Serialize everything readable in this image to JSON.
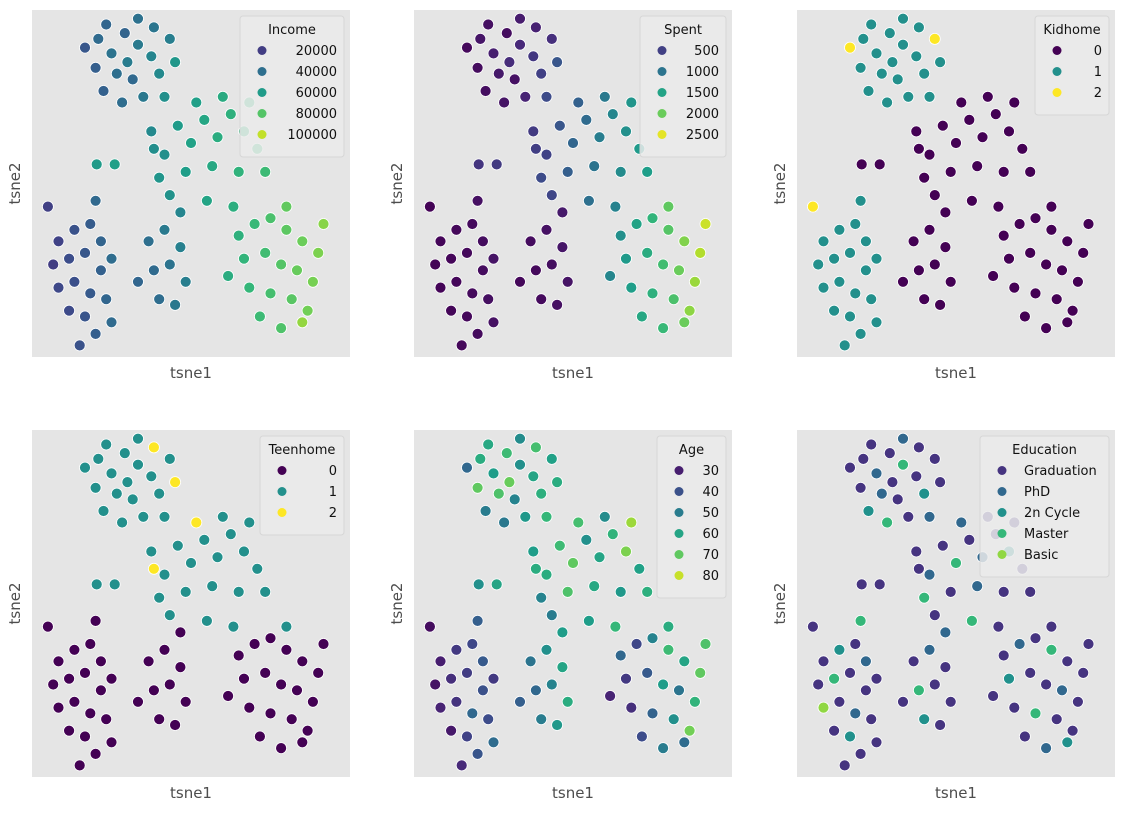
{
  "chart_data": {
    "type": "scatter",
    "grid": false,
    "point_fields": [
      "tsne1",
      "tsne2",
      "Income",
      "Spent",
      "Kidhome",
      "Teenhome",
      "Age",
      "Education"
    ],
    "education_categories": [
      "Graduation",
      "PhD",
      "2n Cycle",
      "Master",
      "Basic"
    ],
    "xlim": [
      -60,
      60
    ],
    "ylim": [
      -60,
      60
    ],
    "points": [
      [
        -35,
        50,
        38000,
        150,
        1,
        1,
        62,
        0
      ],
      [
        -30,
        45,
        42000,
        220,
        1,
        1,
        58,
        1
      ],
      [
        -25,
        52,
        35000,
        90,
        1,
        1,
        66,
        0
      ],
      [
        -20,
        48,
        45000,
        300,
        1,
        1,
        55,
        3
      ],
      [
        -15,
        44,
        50000,
        420,
        1,
        1,
        60,
        0
      ],
      [
        -28,
        38,
        40000,
        180,
        1,
        1,
        68,
        1
      ],
      [
        -22,
        36,
        37000,
        120,
        1,
        1,
        52,
        0
      ],
      [
        -12,
        38,
        52000,
        500,
        1,
        1,
        63,
        2
      ],
      [
        -36,
        40,
        33000,
        80,
        1,
        1,
        70,
        0
      ],
      [
        -18,
        30,
        44000,
        260,
        1,
        1,
        57,
        0
      ],
      [
        -26,
        28,
        39000,
        140,
        1,
        1,
        49,
        3
      ],
      [
        -10,
        30,
        55000,
        600,
        1,
        1,
        65,
        1
      ],
      [
        -32,
        55,
        36000,
        110,
        1,
        1,
        61,
        0
      ],
      [
        -40,
        47,
        30000,
        60,
        2,
        1,
        45,
        0
      ],
      [
        -8,
        50,
        47000,
        350,
        2,
        1,
        59,
        0
      ],
      [
        -6,
        42,
        58000,
        700,
        1,
        2,
        62,
        0
      ],
      [
        -20,
        57,
        41000,
        200,
        1,
        1,
        54,
        1
      ],
      [
        -14,
        54,
        43000,
        240,
        1,
        2,
        67,
        0
      ],
      [
        -33,
        32,
        34000,
        95,
        1,
        1,
        50,
        2
      ],
      [
        -24,
        42,
        46000,
        330,
        1,
        1,
        71,
        0
      ],
      [
        -15,
        18,
        52000,
        450,
        0,
        1,
        58,
        0
      ],
      [
        -10,
        10,
        55000,
        520,
        0,
        1,
        62,
        1
      ],
      [
        -5,
        20,
        60000,
        700,
        0,
        1,
        66,
        0
      ],
      [
        0,
        14,
        63000,
        850,
        0,
        1,
        70,
        3
      ],
      [
        5,
        22,
        65000,
        900,
        0,
        1,
        55,
        0
      ],
      [
        10,
        16,
        68000,
        1100,
        0,
        1,
        60,
        1
      ],
      [
        15,
        24,
        70000,
        1200,
        0,
        1,
        64,
        0
      ],
      [
        20,
        18,
        72000,
        1300,
        0,
        1,
        73,
        2
      ],
      [
        25,
        12,
        74000,
        1400,
        0,
        1,
        59,
        0
      ],
      [
        -12,
        2,
        57000,
        600,
        0,
        1,
        52,
        3
      ],
      [
        -2,
        4,
        61000,
        780,
        0,
        1,
        68,
        0
      ],
      [
        8,
        6,
        66000,
        1000,
        0,
        1,
        61,
        1
      ],
      [
        18,
        4,
        71000,
        1250,
        0,
        1,
        57,
        0
      ],
      [
        28,
        4,
        75000,
        1450,
        0,
        1,
        63,
        0
      ],
      [
        2,
        28,
        62000,
        800,
        0,
        2,
        67,
        1
      ],
      [
        12,
        30,
        67000,
        1050,
        0,
        1,
        54,
        0
      ],
      [
        22,
        28,
        73000,
        1350,
        0,
        1,
        76,
        0
      ],
      [
        -8,
        -4,
        56000,
        550,
        0,
        1,
        50,
        0
      ],
      [
        6,
        -6,
        64000,
        950,
        0,
        1,
        58,
        3
      ],
      [
        16,
        -8,
        69000,
        1150,
        0,
        1,
        65,
        0
      ],
      [
        -14,
        12,
        54000,
        480,
        0,
        2,
        62,
        0
      ],
      [
        18,
        -18,
        70000,
        1300,
        0,
        0,
        45,
        0
      ],
      [
        24,
        -14,
        74000,
        1500,
        0,
        0,
        38,
        1
      ],
      [
        30,
        -12,
        78000,
        1700,
        0,
        0,
        52,
        0
      ],
      [
        36,
        -16,
        82000,
        1900,
        0,
        0,
        66,
        3
      ],
      [
        42,
        -20,
        85000,
        2100,
        0,
        0,
        60,
        0
      ],
      [
        48,
        -24,
        88000,
        2300,
        0,
        0,
        70,
        0
      ],
      [
        20,
        -26,
        72000,
        1400,
        0,
        0,
        35,
        2
      ],
      [
        28,
        -24,
        76000,
        1600,
        0,
        0,
        42,
        0
      ],
      [
        34,
        -28,
        80000,
        1800,
        0,
        0,
        58,
        0
      ],
      [
        40,
        -30,
        84000,
        2000,
        0,
        0,
        48,
        1
      ],
      [
        46,
        -34,
        87000,
        2200,
        0,
        0,
        64,
        0
      ],
      [
        22,
        -36,
        73000,
        1450,
        0,
        0,
        33,
        0
      ],
      [
        30,
        -38,
        77000,
        1650,
        0,
        0,
        44,
        3
      ],
      [
        38,
        -40,
        81000,
        1850,
        0,
        0,
        55,
        0
      ],
      [
        44,
        -44,
        86000,
        2150,
        0,
        0,
        72,
        0
      ],
      [
        26,
        -46,
        75000,
        1550,
        0,
        0,
        39,
        0
      ],
      [
        34,
        -50,
        79000,
        1750,
        0,
        0,
        50,
        1
      ],
      [
        50,
        -14,
        90000,
        2400,
        0,
        0,
        68,
        0
      ],
      [
        14,
        -32,
        68000,
        1200,
        0,
        0,
        31,
        0
      ],
      [
        36,
        -8,
        83000,
        1950,
        0,
        1,
        62,
        0
      ],
      [
        42,
        -48,
        92000,
        2000,
        0,
        0,
        46,
        2
      ],
      [
        -50,
        -20,
        22000,
        30,
        1,
        0,
        30,
        0
      ],
      [
        -44,
        -16,
        28000,
        50,
        1,
        0,
        35,
        2
      ],
      [
        -38,
        -14,
        32000,
        70,
        1,
        0,
        38,
        0
      ],
      [
        -34,
        -20,
        35000,
        90,
        1,
        0,
        42,
        1
      ],
      [
        -52,
        -28,
        20000,
        20,
        1,
        0,
        28,
        0
      ],
      [
        -46,
        -26,
        26000,
        40,
        1,
        0,
        33,
        3
      ],
      [
        -40,
        -24,
        30000,
        60,
        1,
        0,
        36,
        0
      ],
      [
        -34,
        -30,
        34000,
        80,
        1,
        0,
        40,
        0
      ],
      [
        -50,
        -36,
        24000,
        25,
        1,
        0,
        31,
        4
      ],
      [
        -44,
        -34,
        27000,
        45,
        1,
        0,
        34,
        0
      ],
      [
        -38,
        -38,
        31000,
        65,
        1,
        0,
        45,
        1
      ],
      [
        -32,
        -40,
        36000,
        100,
        1,
        0,
        39,
        0
      ],
      [
        -46,
        -44,
        25000,
        35,
        1,
        0,
        29,
        0
      ],
      [
        -40,
        -46,
        29000,
        55,
        1,
        0,
        37,
        2
      ],
      [
        -36,
        -52,
        33000,
        75,
        1,
        0,
        41,
        0
      ],
      [
        -30,
        -48,
        38000,
        120,
        1,
        0,
        46,
        0
      ],
      [
        -42,
        -56,
        28000,
        50,
        1,
        0,
        32,
        0
      ],
      [
        -54,
        -8,
        21000,
        15,
        2,
        0,
        27,
        0
      ],
      [
        -36,
        -6,
        37000,
        110,
        1,
        0,
        43,
        3
      ],
      [
        -30,
        -26,
        39000,
        140,
        1,
        0,
        35,
        0
      ],
      [
        -16,
        -20,
        40000,
        80,
        0,
        0,
        48,
        0
      ],
      [
        -10,
        -16,
        45000,
        120,
        0,
        0,
        55,
        1
      ],
      [
        -4,
        -22,
        48000,
        150,
        0,
        0,
        60,
        0
      ],
      [
        -14,
        -30,
        38000,
        60,
        0,
        0,
        45,
        3
      ],
      [
        -8,
        -28,
        42000,
        100,
        0,
        0,
        52,
        0
      ],
      [
        -2,
        -34,
        47000,
        140,
        0,
        0,
        62,
        0
      ],
      [
        -12,
        -40,
        39000,
        70,
        0,
        0,
        50,
        2
      ],
      [
        -6,
        -42,
        44000,
        110,
        0,
        0,
        57,
        0
      ],
      [
        -20,
        -34,
        36000,
        50,
        0,
        0,
        43,
        0
      ],
      [
        -4,
        -10,
        50000,
        180,
        0,
        0,
        58,
        1
      ],
      [
        -35.6,
        6.6,
        60000,
        400,
        0,
        1,
        55,
        0
      ],
      [
        -28.8,
        6.6,
        62000,
        450,
        0,
        1,
        60,
        0
      ]
    ],
    "panels": [
      {
        "hue": "Income",
        "field": 2,
        "xlabel": "tsne1",
        "ylabel": "tsne2",
        "legend_title": "Income",
        "legend_placement": "top-right",
        "hue_range": [
          0,
          110000
        ],
        "legend": [
          {
            "label": "20000",
            "value": 20000
          },
          {
            "label": "40000",
            "value": 40000
          },
          {
            "label": "60000",
            "value": 60000
          },
          {
            "label": "80000",
            "value": 80000
          },
          {
            "label": "100000",
            "value": 100000
          }
        ]
      },
      {
        "hue": "Spent",
        "field": 3,
        "xlabel": "tsne1",
        "ylabel": "tsne2",
        "legend_title": "Spent",
        "legend_placement": "top-right",
        "hue_range": [
          0,
          2600
        ],
        "legend": [
          {
            "label": "500",
            "value": 500
          },
          {
            "label": "1000",
            "value": 1000
          },
          {
            "label": "1500",
            "value": 1500
          },
          {
            "label": "2000",
            "value": 2000
          },
          {
            "label": "2500",
            "value": 2500
          }
        ]
      },
      {
        "hue": "Kidhome",
        "field": 4,
        "xlabel": "tsne1",
        "ylabel": "tsne2",
        "legend_title": "Kidhome",
        "legend_placement": "top-right",
        "hue_range": [
          0,
          2
        ],
        "legend": [
          {
            "label": "0",
            "value": 0
          },
          {
            "label": "1",
            "value": 1
          },
          {
            "label": "2",
            "value": 2
          }
        ]
      },
      {
        "hue": "Teenhome",
        "field": 5,
        "xlabel": "tsne1",
        "ylabel": "tsne2",
        "legend_title": "Teenhome",
        "legend_placement": "top-right",
        "hue_range": [
          0,
          2
        ],
        "legend": [
          {
            "label": "0",
            "value": 0
          },
          {
            "label": "1",
            "value": 1
          },
          {
            "label": "2",
            "value": 2
          }
        ]
      },
      {
        "hue": "Age",
        "field": 6,
        "xlabel": "tsne1",
        "ylabel": "tsne2",
        "legend_title": "Age",
        "legend_placement": "top-right",
        "hue_range": [
          25,
          85
        ],
        "legend": [
          {
            "label": "30",
            "value": 30
          },
          {
            "label": "40",
            "value": 40
          },
          {
            "label": "50",
            "value": 50
          },
          {
            "label": "60",
            "value": 60
          },
          {
            "label": "70",
            "value": 70
          },
          {
            "label": "80",
            "value": 80
          }
        ]
      },
      {
        "hue": "Education",
        "field": 7,
        "xlabel": "tsne1",
        "ylabel": "tsne2",
        "legend_title": "Education",
        "legend_placement": "top-right",
        "categorical": true,
        "colors": [
          "#463480",
          "#31688e",
          "#21918c",
          "#35b779",
          "#90d743"
        ],
        "legend": [
          {
            "label": "Graduation",
            "value": 0
          },
          {
            "label": "PhD",
            "value": 1
          },
          {
            "label": "2n Cycle",
            "value": 2
          },
          {
            "label": "Master",
            "value": 3
          },
          {
            "label": "Basic",
            "value": 4
          }
        ]
      }
    ],
    "axes_background": "#e5e5e5",
    "colormap": "viridis"
  }
}
